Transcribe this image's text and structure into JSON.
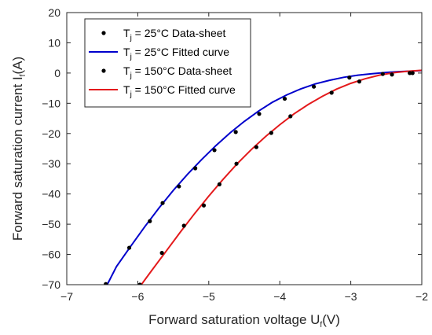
{
  "chart_data": {
    "type": "scatter",
    "xlabel": {
      "main": "Forward saturation voltage U",
      "sub": "f",
      "unit": "(V)"
    },
    "ylabel": {
      "main": "Forward saturation current I",
      "sub": "f",
      "unit": "(A)"
    },
    "xlim": [
      -7,
      -2
    ],
    "ylim": [
      -70,
      20
    ],
    "xticks": [
      -7,
      -6,
      -5,
      -4,
      -3,
      -2
    ],
    "yticks": [
      -70,
      -60,
      -50,
      -40,
      -30,
      -20,
      -10,
      0,
      10,
      20
    ],
    "grid": false,
    "legend_position": "top-left",
    "legend": [
      {
        "type": "marker",
        "pre": "T",
        "sub": "j",
        "text": " = 25°C Data-sheet",
        "color": "#000000"
      },
      {
        "type": "line",
        "pre": "T",
        "sub": "j",
        "text": " = 25°C Fitted curve",
        "color": "#0000cc"
      },
      {
        "type": "marker",
        "pre": "T",
        "sub": "j",
        "text": " = 150°C Data-sheet",
        "color": "#000000"
      },
      {
        "type": "line",
        "pre": "T",
        "sub": "j",
        "text": " = 150°C Fitted curve",
        "color": "#e41a1c"
      }
    ],
    "series": [
      {
        "name": "Tj = 25°C Data-sheet",
        "kind": "points",
        "color": "#000000",
        "x": [
          -6.45,
          -6.12,
          -5.83,
          -5.65,
          -5.42,
          -5.19,
          -4.92,
          -4.62,
          -4.29,
          -3.93,
          -3.52,
          -3.02,
          -2.55,
          -2.13
        ],
        "y": [
          -69.8,
          -57.8,
          -49.0,
          -43.0,
          -37.5,
          -31.5,
          -25.5,
          -19.5,
          -13.5,
          -8.5,
          -4.5,
          -1.5,
          -0.3,
          0.0
        ]
      },
      {
        "name": "Tj = 25°C Fitted curve",
        "kind": "line",
        "color": "#0000cc",
        "x": [
          -6.43,
          -6.3,
          -6.1,
          -5.9,
          -5.7,
          -5.5,
          -5.3,
          -5.1,
          -4.9,
          -4.7,
          -4.5,
          -4.3,
          -4.1,
          -3.9,
          -3.7,
          -3.5,
          -3.3,
          -3.1,
          -2.9,
          -2.7,
          -2.5,
          -2.3,
          -2.1,
          -2.0
        ],
        "y": [
          -70.0,
          -64.0,
          -57.3,
          -50.8,
          -44.6,
          -38.8,
          -33.5,
          -28.6,
          -24.0,
          -19.8,
          -16.0,
          -12.6,
          -9.6,
          -7.2,
          -5.2,
          -3.6,
          -2.4,
          -1.4,
          -0.7,
          -0.2,
          0.2,
          0.5,
          0.7,
          0.8
        ]
      },
      {
        "name": "Tj = 150°C Data-sheet",
        "kind": "points",
        "color": "#000000",
        "x": [
          -5.97,
          -5.66,
          -5.35,
          -5.07,
          -4.85,
          -4.61,
          -4.33,
          -4.12,
          -3.85,
          -3.27,
          -2.88,
          -2.42,
          -2.17
        ],
        "y": [
          -70.0,
          -59.5,
          -50.5,
          -43.8,
          -36.8,
          -30.0,
          -24.5,
          -19.8,
          -14.3,
          -6.5,
          -2.8,
          -0.5,
          0.0
        ]
      },
      {
        "name": "Tj = 150°C Fitted curve",
        "kind": "line",
        "color": "#e41a1c",
        "x": [
          -5.95,
          -5.8,
          -5.6,
          -5.4,
          -5.2,
          -5.0,
          -4.8,
          -4.6,
          -4.4,
          -4.2,
          -4.0,
          -3.8,
          -3.6,
          -3.4,
          -3.2,
          -3.0,
          -2.8,
          -2.6,
          -2.4,
          -2.2,
          -2.0
        ],
        "y": [
          -70.0,
          -65.2,
          -58.9,
          -52.6,
          -46.5,
          -40.7,
          -35.2,
          -30.0,
          -25.3,
          -21.0,
          -17.1,
          -13.5,
          -10.4,
          -7.7,
          -5.3,
          -3.4,
          -1.9,
          -0.7,
          0.1,
          0.6,
          0.9
        ]
      }
    ]
  }
}
